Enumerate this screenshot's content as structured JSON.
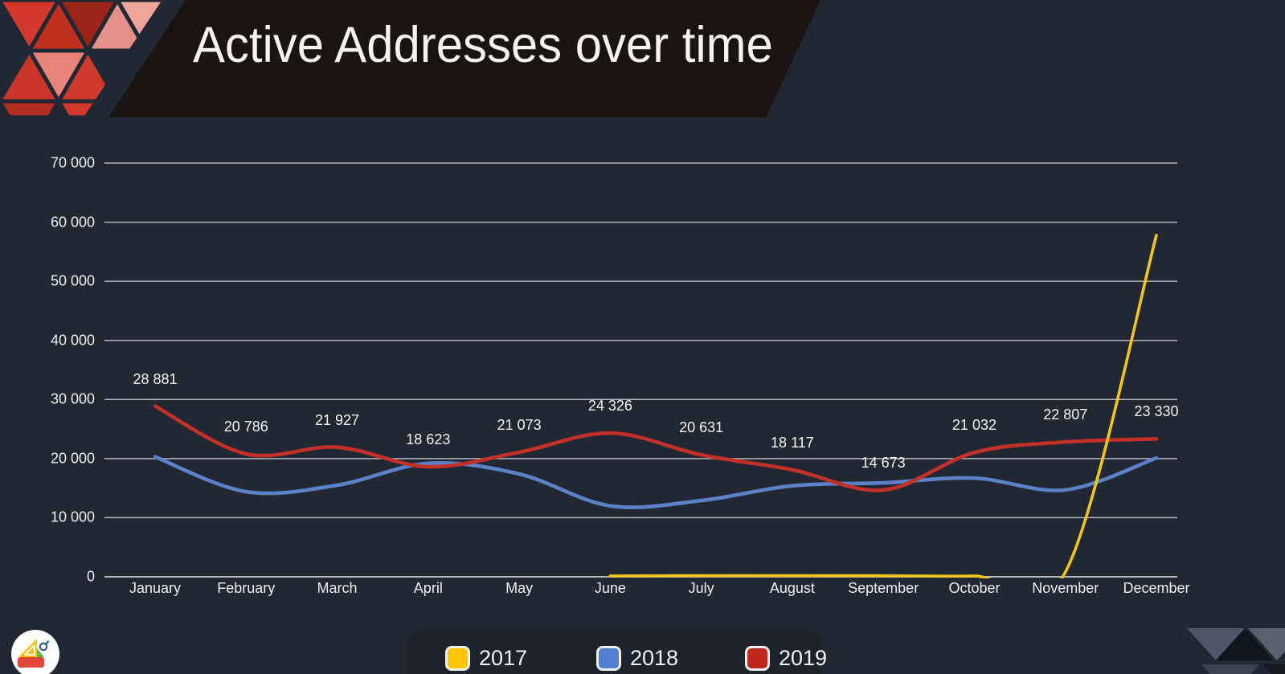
{
  "title": "Active Addresses over time",
  "legend": {
    "items": [
      {
        "label": "2017",
        "color": "#fec40a"
      },
      {
        "label": "2018",
        "color": "#4f7ed2"
      },
      {
        "label": "2019",
        "color": "#c1281d"
      }
    ]
  },
  "colors": {
    "background": "#222734",
    "banner": "#1a1311",
    "gridline": "#b3b6bd",
    "series_2017": "#f2c51d",
    "series_2018": "#5b82c8",
    "series_2019": "#c23027"
  },
  "chart_data": {
    "type": "line",
    "title": "Active Addresses over time",
    "xlabel": "",
    "ylabel": "",
    "categories": [
      "January",
      "February",
      "March",
      "April",
      "May",
      "June",
      "July",
      "August",
      "September",
      "October",
      "November",
      "December"
    ],
    "ylim": [
      0,
      70000
    ],
    "yticks": {
      "values": [
        70000,
        60000,
        50000,
        40000,
        30000,
        20000,
        10000,
        0
      ],
      "labels": [
        "70 000",
        "60 000",
        "50 000",
        "40 000",
        "30 000",
        "20 000",
        "10 000",
        "0"
      ]
    },
    "grid": "horizontal",
    "legend_position": "bottom",
    "smoothing": "spline",
    "series": [
      {
        "name": "2017",
        "color": "#f2c51d",
        "values": [
          null,
          null,
          null,
          null,
          null,
          150,
          200,
          200,
          180,
          150,
          800,
          57800
        ]
      },
      {
        "name": "2018",
        "color": "#5b82c8",
        "values": [
          20300,
          14400,
          15500,
          19200,
          17400,
          12000,
          12900,
          15400,
          15900,
          16700,
          14700,
          20100
        ]
      },
      {
        "name": "2019",
        "color": "#c23027",
        "values": [
          28881,
          20786,
          21927,
          18623,
          21073,
          24326,
          20631,
          18117,
          14673,
          21032,
          22807,
          23330
        ],
        "value_labels": [
          "28 881",
          "20 786",
          "21 927",
          "18 623",
          "21 073",
          "24 326",
          "20 631",
          "18 117",
          "14 673",
          "21 032",
          "22 807",
          "23 330"
        ]
      }
    ]
  }
}
